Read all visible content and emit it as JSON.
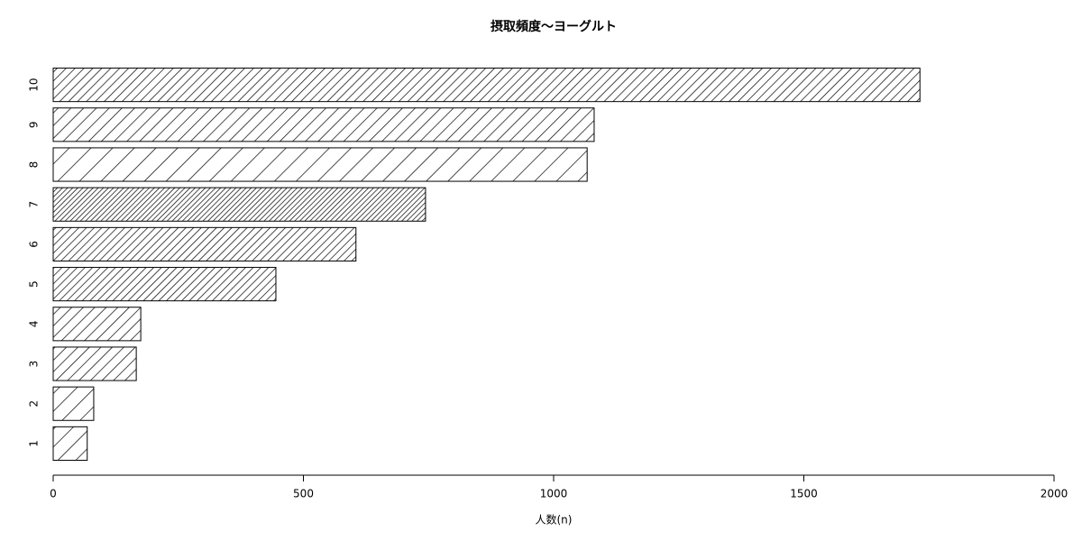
{
  "chart_data": {
    "type": "barh",
    "title": "摂取頻度〜ヨーグルト",
    "xlabel": "人数(n)",
    "categories": [
      "1",
      "2",
      "3",
      "4",
      "5",
      "6",
      "7",
      "8",
      "9",
      "10"
    ],
    "values": [
      68,
      81,
      166,
      175,
      445,
      605,
      744,
      1067,
      1081,
      1732
    ],
    "color": "#000000",
    "xlim": [
      0,
      2000
    ],
    "xticks": [
      0,
      500,
      1000,
      1500,
      2000
    ]
  }
}
